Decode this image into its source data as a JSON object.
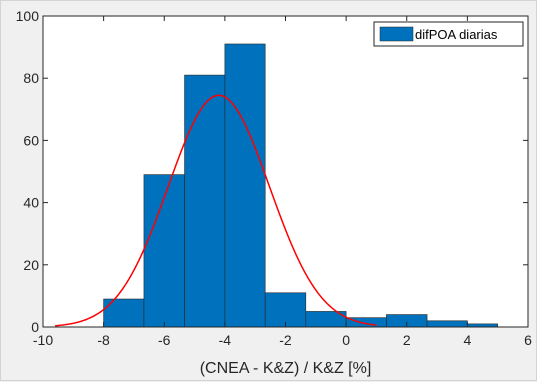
{
  "chart_data": {
    "type": "bar",
    "subtype": "histogram",
    "xlabel": "(CNEA - K&Z) / K&Z [%]",
    "ylabel": "",
    "title": "",
    "xlim": [
      -10,
      6
    ],
    "ylim": [
      0,
      100
    ],
    "xticks": [
      -10,
      -8,
      -6,
      -4,
      -2,
      0,
      2,
      4,
      6
    ],
    "yticks": [
      0,
      20,
      40,
      60,
      80,
      100
    ],
    "grid": false,
    "legend_position": "top-right",
    "bins": [
      {
        "x0": -8.0,
        "x1": -6.67,
        "value": 9
      },
      {
        "x0": -6.67,
        "x1": -5.33,
        "value": 49
      },
      {
        "x0": -5.33,
        "x1": -4.0,
        "value": 81
      },
      {
        "x0": -4.0,
        "x1": -2.67,
        "value": 91
      },
      {
        "x0": -2.67,
        "x1": -1.33,
        "value": 11
      },
      {
        "x0": -1.33,
        "x1": 0.0,
        "value": 5
      },
      {
        "x0": 0.0,
        "x1": 1.33,
        "value": 3
      },
      {
        "x0": 1.33,
        "x1": 2.67,
        "value": 4
      },
      {
        "x0": 2.67,
        "x1": 4.0,
        "value": 2
      },
      {
        "x0": 4.0,
        "x1": 5.0,
        "value": 1
      }
    ],
    "series": [
      {
        "name": "difPOA diarias",
        "kind": "histogram",
        "color": "#0072bd"
      },
      {
        "kind": "fit-curve",
        "color": "#ff0000",
        "mean": -4.2,
        "sd": 1.67,
        "peak": 74.5,
        "x_range": [
          -9.6,
          1.0
        ]
      }
    ]
  }
}
